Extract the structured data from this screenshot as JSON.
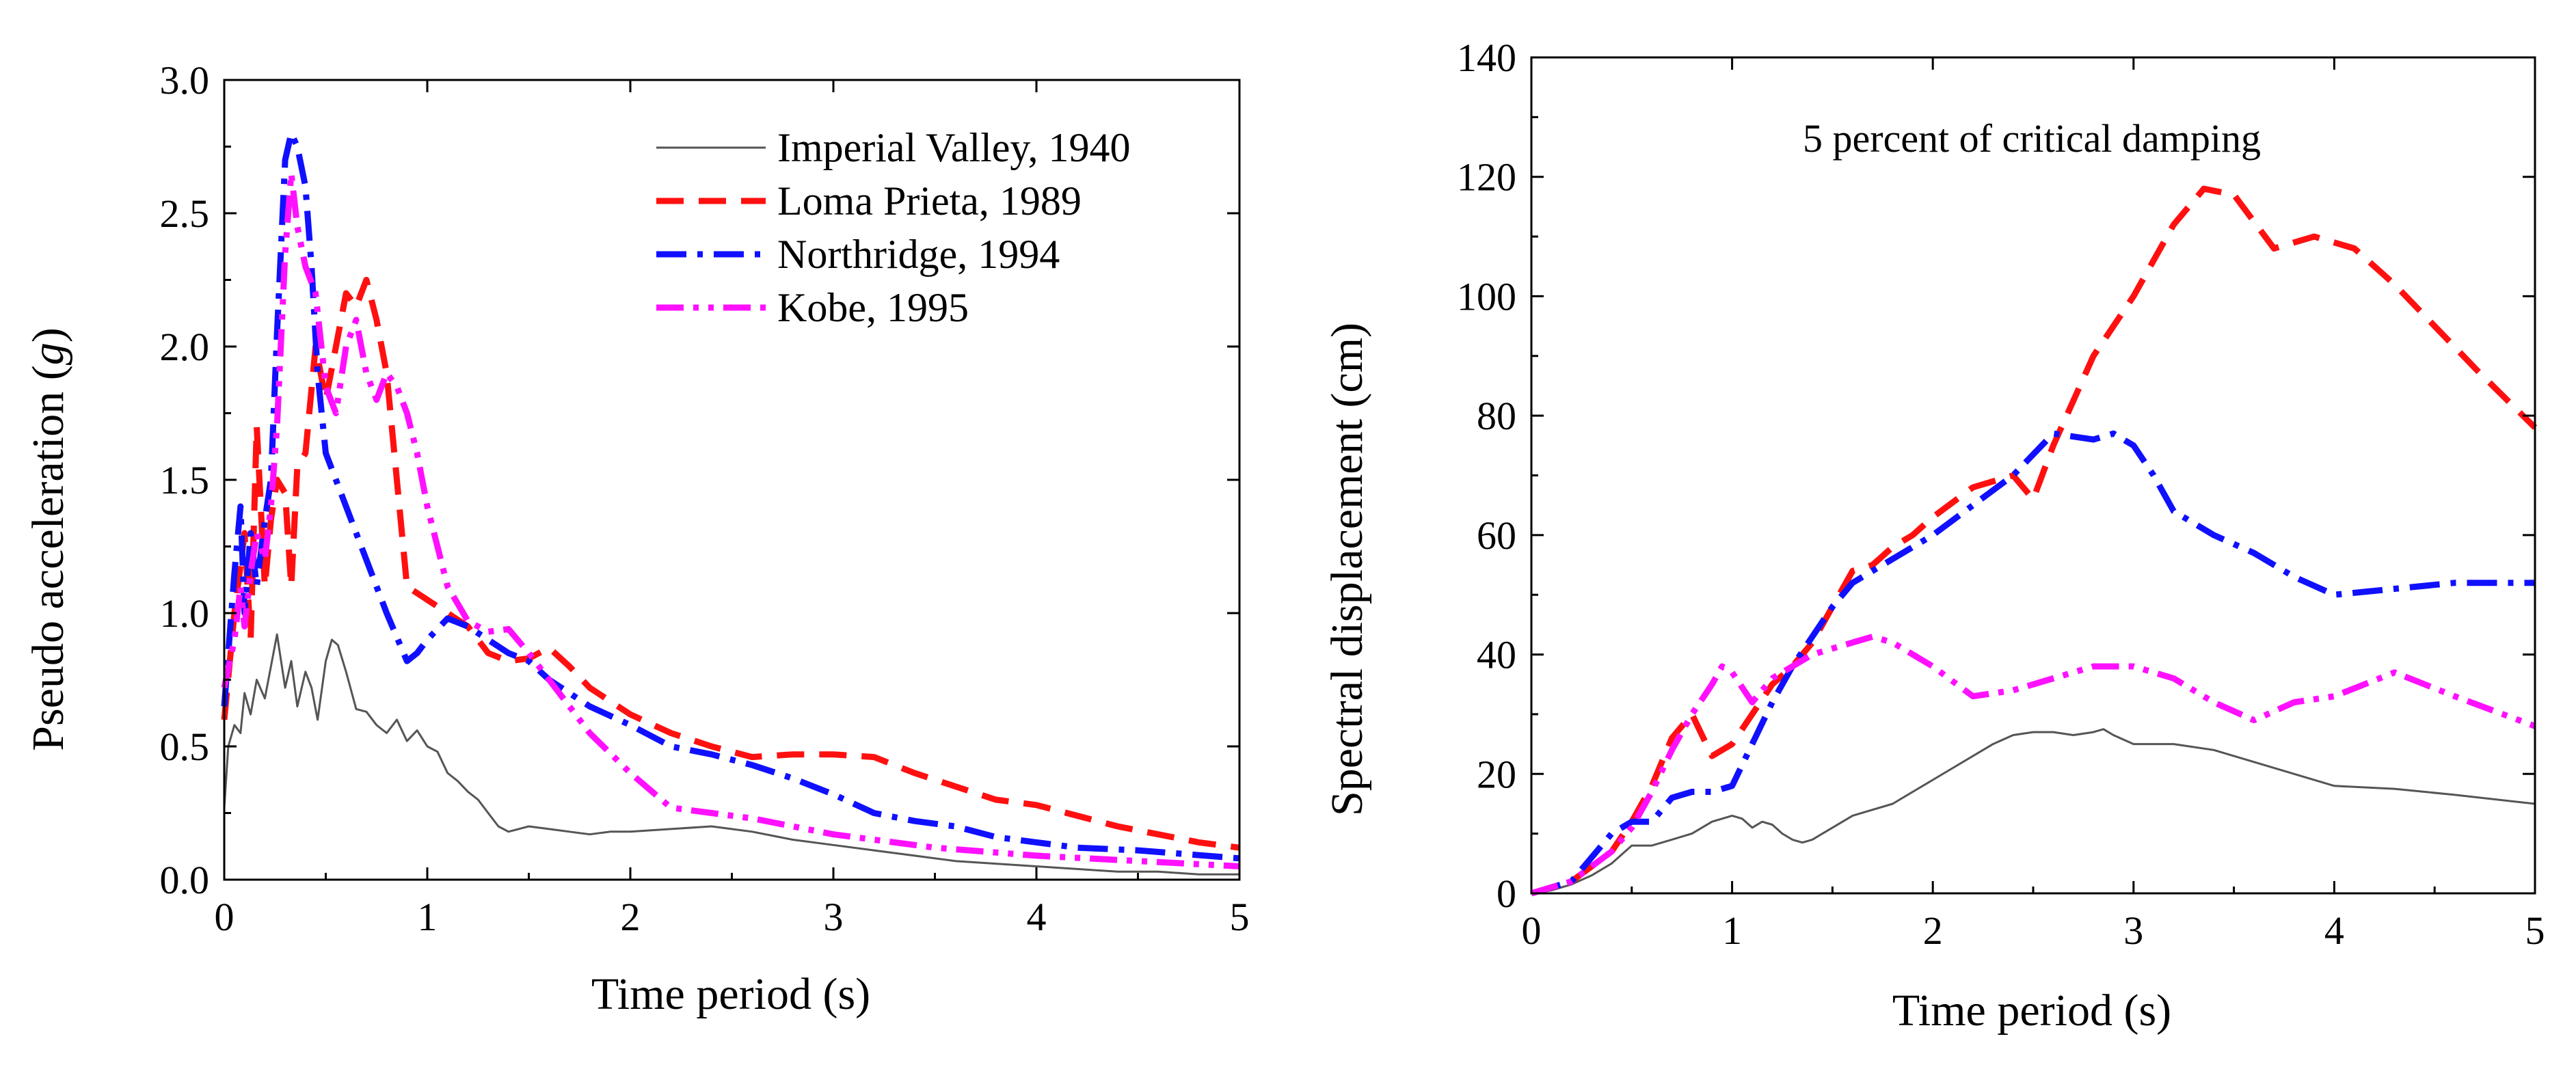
{
  "chart_data": [
    {
      "type": "line",
      "xlabel": "Time period (s)",
      "ylabel_prefix": "Pseudo acceleration (",
      "ylabel_unit": "g",
      "ylabel_suffix": ")",
      "xlim": [
        0,
        5
      ],
      "ylim": [
        0,
        3.0
      ],
      "xticks": [
        0,
        1,
        2,
        3,
        4,
        5
      ],
      "xtick_labels": [
        "0",
        "1",
        "2",
        "3",
        "4",
        "5"
      ],
      "yticks": [
        0,
        0.5,
        1.0,
        1.5,
        2.0,
        2.5,
        3.0
      ],
      "ytick_labels": [
        "0.0",
        "0.5",
        "1.0",
        "1.5",
        "2.0",
        "2.5",
        "3.0"
      ],
      "legend_position": "top-right",
      "series": [
        {
          "name": "Imperial Valley, 1940",
          "color": "#555555",
          "dash": "solid",
          "x": [
            0,
            0.02,
            0.05,
            0.08,
            0.1,
            0.13,
            0.16,
            0.2,
            0.23,
            0.26,
            0.3,
            0.33,
            0.36,
            0.4,
            0.43,
            0.46,
            0.5,
            0.53,
            0.56,
            0.6,
            0.65,
            0.7,
            0.75,
            0.8,
            0.85,
            0.9,
            0.95,
            1.0,
            1.05,
            1.1,
            1.15,
            1.2,
            1.25,
            1.3,
            1.35,
            1.4,
            1.45,
            1.5,
            1.6,
            1.7,
            1.8,
            1.9,
            2.0,
            2.2,
            2.4,
            2.6,
            2.8,
            3.0,
            3.2,
            3.4,
            3.6,
            3.8,
            4.0,
            4.2,
            4.4,
            4.6,
            4.8,
            5.0
          ],
          "y": [
            0.27,
            0.5,
            0.58,
            0.55,
            0.7,
            0.62,
            0.75,
            0.68,
            0.8,
            0.92,
            0.72,
            0.82,
            0.65,
            0.78,
            0.72,
            0.6,
            0.82,
            0.9,
            0.88,
            0.78,
            0.64,
            0.63,
            0.58,
            0.55,
            0.6,
            0.52,
            0.56,
            0.5,
            0.48,
            0.4,
            0.37,
            0.33,
            0.3,
            0.25,
            0.2,
            0.18,
            0.19,
            0.2,
            0.19,
            0.18,
            0.17,
            0.18,
            0.18,
            0.19,
            0.2,
            0.18,
            0.15,
            0.13,
            0.11,
            0.09,
            0.07,
            0.06,
            0.05,
            0.04,
            0.03,
            0.03,
            0.02,
            0.02
          ]
        },
        {
          "name": "Loma Prieta, 1989",
          "color": "#ff1010",
          "dash": "dashed",
          "x": [
            0,
            0.05,
            0.1,
            0.13,
            0.16,
            0.2,
            0.23,
            0.26,
            0.3,
            0.33,
            0.36,
            0.4,
            0.45,
            0.5,
            0.55,
            0.6,
            0.65,
            0.7,
            0.75,
            0.8,
            0.85,
            0.9,
            1.0,
            1.1,
            1.2,
            1.3,
            1.4,
            1.5,
            1.6,
            1.7,
            1.8,
            2.0,
            2.2,
            2.4,
            2.6,
            2.8,
            3.0,
            3.2,
            3.4,
            3.6,
            3.8,
            4.0,
            4.2,
            4.4,
            4.6,
            4.8,
            5.0
          ],
          "y": [
            0.6,
            1.0,
            1.3,
            0.9,
            1.7,
            1.1,
            1.35,
            1.5,
            1.45,
            1.1,
            1.55,
            1.6,
            2.0,
            1.8,
            2.0,
            2.2,
            2.15,
            2.25,
            2.1,
            1.9,
            1.5,
            1.1,
            1.05,
            1.0,
            0.95,
            0.85,
            0.82,
            0.83,
            0.87,
            0.8,
            0.72,
            0.62,
            0.55,
            0.5,
            0.46,
            0.47,
            0.47,
            0.46,
            0.4,
            0.35,
            0.3,
            0.28,
            0.24,
            0.2,
            0.17,
            0.14,
            0.12
          ]
        },
        {
          "name": "Northridge, 1994",
          "color": "#1010ff",
          "dash": "dashdot",
          "x": [
            0,
            0.05,
            0.08,
            0.1,
            0.13,
            0.16,
            0.2,
            0.23,
            0.26,
            0.3,
            0.33,
            0.36,
            0.4,
            0.43,
            0.46,
            0.5,
            0.55,
            0.6,
            0.7,
            0.8,
            0.9,
            0.95,
            1.0,
            1.1,
            1.2,
            1.3,
            1.4,
            1.5,
            1.6,
            1.8,
            2.0,
            2.2,
            2.4,
            2.6,
            2.8,
            3.0,
            3.2,
            3.4,
            3.6,
            3.8,
            4.0,
            4.2,
            4.5,
            5.0
          ],
          "y": [
            0.65,
            1.15,
            1.4,
            1.0,
            1.3,
            1.1,
            1.35,
            1.5,
            2.05,
            2.7,
            2.8,
            2.75,
            2.6,
            2.3,
            1.9,
            1.6,
            1.5,
            1.4,
            1.2,
            1.0,
            0.82,
            0.85,
            0.9,
            0.98,
            0.95,
            0.9,
            0.85,
            0.82,
            0.75,
            0.65,
            0.58,
            0.5,
            0.47,
            0.43,
            0.38,
            0.32,
            0.25,
            0.22,
            0.2,
            0.16,
            0.14,
            0.12,
            0.11,
            0.08
          ]
        },
        {
          "name": "Kobe, 1995",
          "color": "#ff10ff",
          "dash": "dashdotdot",
          "x": [
            0,
            0.05,
            0.08,
            0.1,
            0.13,
            0.16,
            0.2,
            0.23,
            0.26,
            0.3,
            0.33,
            0.36,
            0.4,
            0.45,
            0.5,
            0.55,
            0.6,
            0.65,
            0.7,
            0.75,
            0.8,
            0.85,
            0.9,
            0.95,
            1.0,
            1.1,
            1.2,
            1.3,
            1.4,
            1.5,
            1.6,
            1.8,
            2.0,
            2.2,
            2.4,
            2.6,
            2.8,
            3.0,
            3.5,
            4.0,
            4.5,
            5.0
          ],
          "y": [
            0.72,
            0.9,
            1.1,
            0.95,
            1.15,
            1.3,
            1.2,
            1.4,
            1.7,
            2.35,
            2.65,
            2.45,
            2.3,
            2.2,
            1.85,
            1.75,
            2.0,
            2.1,
            1.9,
            1.8,
            1.9,
            1.85,
            1.75,
            1.6,
            1.4,
            1.1,
            0.97,
            0.93,
            0.94,
            0.85,
            0.75,
            0.55,
            0.4,
            0.27,
            0.25,
            0.23,
            0.2,
            0.17,
            0.12,
            0.09,
            0.07,
            0.05
          ]
        }
      ]
    },
    {
      "type": "line",
      "xlabel": "Time period (s)",
      "ylabel": "Spectral displacement (cm)",
      "annotation": "5 percent of critical damping",
      "xlim": [
        0,
        5
      ],
      "ylim": [
        0,
        140
      ],
      "xticks": [
        0,
        1,
        2,
        3,
        4,
        5
      ],
      "xtick_labels": [
        "0",
        "1",
        "2",
        "3",
        "4",
        "5"
      ],
      "yticks": [
        0,
        20,
        40,
        60,
        80,
        100,
        120,
        140
      ],
      "ytick_labels": [
        "0",
        "20",
        "40",
        "60",
        "80",
        "100",
        "120",
        "140"
      ],
      "series": [
        {
          "name": "Imperial Valley, 1940",
          "color": "#555555",
          "dash": "solid",
          "x": [
            0,
            0.1,
            0.2,
            0.3,
            0.4,
            0.5,
            0.6,
            0.7,
            0.8,
            0.9,
            1.0,
            1.05,
            1.1,
            1.15,
            1.2,
            1.25,
            1.3,
            1.35,
            1.4,
            1.5,
            1.6,
            1.7,
            1.8,
            1.9,
            2.0,
            2.1,
            2.2,
            2.3,
            2.4,
            2.5,
            2.6,
            2.7,
            2.8,
            2.85,
            2.9,
            3.0,
            3.2,
            3.4,
            3.6,
            3.8,
            4.0,
            4.3,
            4.6,
            5.0
          ],
          "y": [
            0,
            0.5,
            1.5,
            3,
            5,
            8,
            8,
            9,
            10,
            12,
            13,
            12.5,
            11,
            12,
            11.5,
            10,
            9,
            8.5,
            9,
            11,
            13,
            14,
            15,
            17,
            19,
            21,
            23,
            25,
            26.5,
            27,
            27,
            26.5,
            27,
            27.5,
            26.5,
            25,
            25,
            24,
            22,
            20,
            18,
            17.5,
            16.5,
            15
          ]
        },
        {
          "name": "Loma Prieta, 1989",
          "color": "#ff1010",
          "dash": "dashed",
          "x": [
            0,
            0.2,
            0.4,
            0.5,
            0.6,
            0.7,
            0.8,
            0.9,
            1.0,
            1.1,
            1.2,
            1.3,
            1.4,
            1.5,
            1.6,
            1.7,
            1.8,
            1.9,
            2.0,
            2.2,
            2.4,
            2.5,
            2.6,
            2.8,
            3.0,
            3.2,
            3.35,
            3.5,
            3.7,
            3.9,
            4.1,
            4.3,
            4.5,
            4.7,
            5.0
          ],
          "y": [
            0,
            2,
            7,
            12,
            18,
            26,
            30,
            23,
            25,
            30,
            35,
            38,
            42,
            48,
            54,
            55,
            58,
            60,
            63,
            68,
            70,
            66,
            75,
            90,
            100,
            112,
            118,
            117,
            108,
            110,
            108,
            102,
            95,
            88,
            78
          ]
        },
        {
          "name": "Northridge, 1994",
          "color": "#1010ff",
          "dash": "dashdot",
          "x": [
            0,
            0.2,
            0.4,
            0.5,
            0.6,
            0.7,
            0.8,
            0.9,
            1.0,
            1.1,
            1.2,
            1.3,
            1.4,
            1.5,
            1.6,
            1.8,
            2.0,
            2.2,
            2.4,
            2.6,
            2.8,
            2.9,
            3.0,
            3.1,
            3.2,
            3.4,
            3.6,
            3.8,
            4.0,
            4.3,
            4.6,
            5.0
          ],
          "y": [
            0,
            2,
            10,
            12,
            12,
            16,
            17,
            17,
            18,
            25,
            32,
            38,
            43,
            48,
            52,
            56,
            60,
            65,
            70,
            77,
            76,
            77,
            75,
            70,
            64,
            60,
            57,
            53,
            50,
            51,
            52,
            52
          ]
        },
        {
          "name": "Kobe, 1995",
          "color": "#ff10ff",
          "dash": "dashdotdot",
          "x": [
            0,
            0.2,
            0.4,
            0.5,
            0.6,
            0.7,
            0.8,
            0.9,
            0.95,
            1.0,
            1.1,
            1.2,
            1.3,
            1.4,
            1.5,
            1.6,
            1.7,
            1.8,
            2.0,
            2.2,
            2.4,
            2.6,
            2.8,
            3.0,
            3.2,
            3.4,
            3.6,
            3.8,
            4.0,
            4.3,
            4.6,
            5.0
          ],
          "y": [
            0,
            2,
            7,
            11,
            17,
            24,
            30,
            35,
            38,
            37,
            32,
            36,
            38,
            40,
            41,
            42,
            43,
            42,
            38,
            33,
            34,
            36,
            38,
            38,
            36,
            32,
            29,
            32,
            33,
            37,
            33,
            28
          ]
        }
      ]
    }
  ]
}
